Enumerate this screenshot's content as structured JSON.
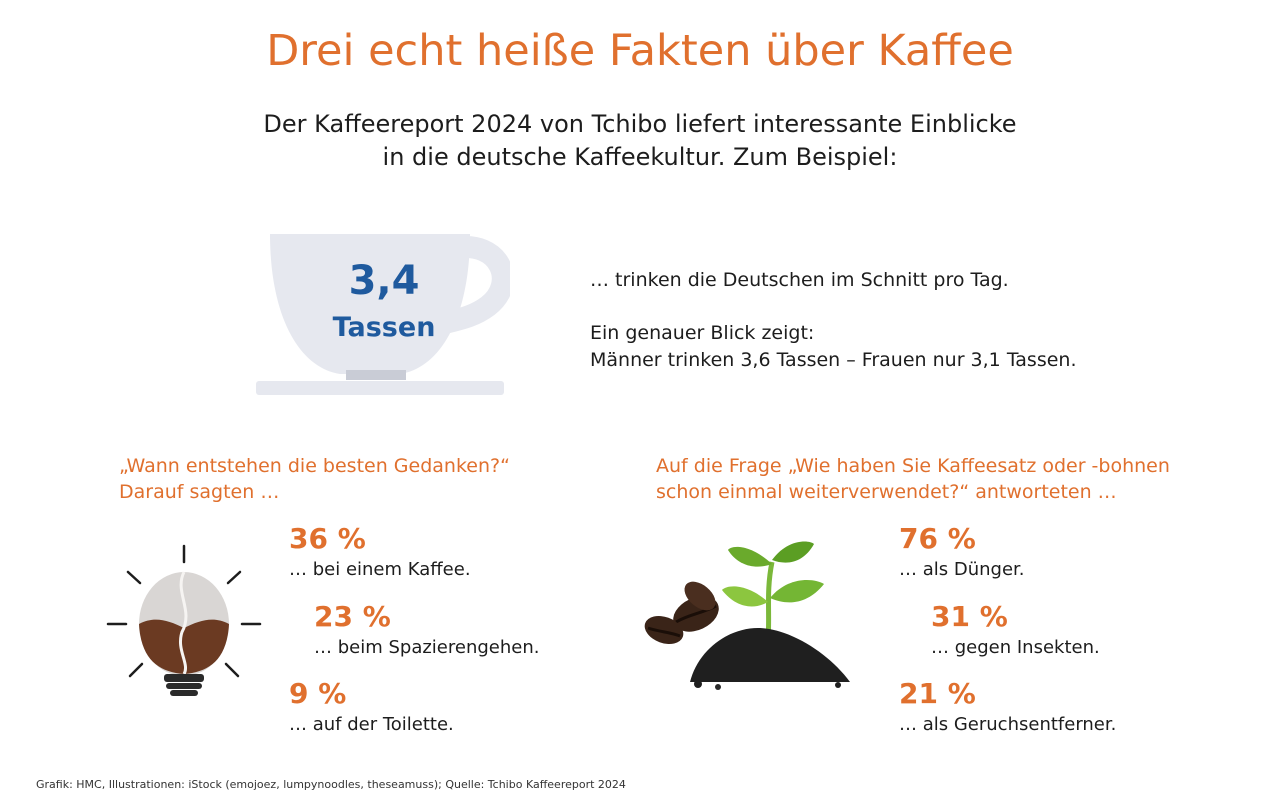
{
  "title": "Drei echt heiße Fakten über Kaffee",
  "intro": {
    "line1": "Der Kaffeereport 2024 von Tchibo liefert interessante Einblicke",
    "line2": "in die deutsche Kaffeekultur. Zum Beispiel:"
  },
  "cup": {
    "value": "3,4",
    "unit": "Tassen",
    "text1": "… trinken die Deutschen im Schnitt pro Tag.",
    "text2": "Ein genauer Blick zeigt:",
    "text3": "Männer trinken 3,6 Tassen – Frauen nur 3,1 Tassen."
  },
  "left_block": {
    "question_line1": "„Wann entstehen die besten Gedanken?“",
    "question_line2": "Darauf sagten …",
    "items": [
      {
        "percent": "36 %",
        "label": "… bei einem Kaffee."
      },
      {
        "percent": "23 %",
        "label": "… beim Spazierengehen."
      },
      {
        "percent": "9 %",
        "label": "… auf der Toilette."
      }
    ]
  },
  "right_block": {
    "question_line1": "Auf die Frage „Wie haben Sie Kaffeesatz oder -bohnen",
    "question_line2": "schon einmal weiterverwendet?“ antworteten …",
    "items": [
      {
        "percent": "76 %",
        "label": "… als Dünger."
      },
      {
        "percent": "31 %",
        "label": "… gegen Insekten."
      },
      {
        "percent": "21 %",
        "label": "… als Geruchsentferner."
      }
    ]
  },
  "footer": "Grafik: HMC, Illustrationen: iStock (emojoez, lumpynoodles, theseamuss); Quelle: Tchibo Kaffeereport 2024",
  "colors": {
    "accent": "#e0702e",
    "cup_text": "#1f5a9e",
    "cup_fill": "#e6e8ef"
  }
}
